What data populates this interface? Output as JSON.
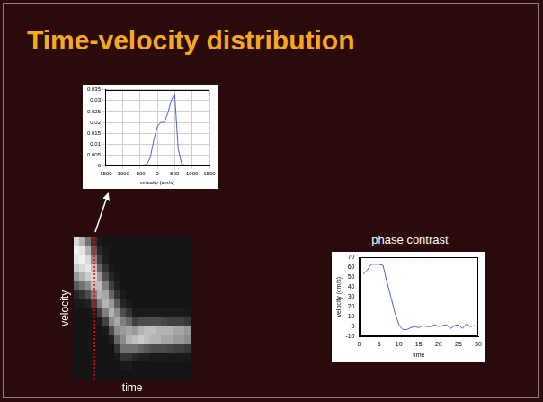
{
  "title": "Time-velocity distribution",
  "chart_data": [
    {
      "type": "line",
      "x_label": "velocity (cm/s)",
      "x": [
        -1500,
        -1400,
        -1300,
        -1200,
        -1100,
        -1000,
        -900,
        -800,
        -700,
        -600,
        -500,
        -400,
        -300,
        -200,
        -100,
        0,
        100,
        200,
        300,
        400,
        500,
        600,
        700,
        800,
        900,
        1000,
        1100,
        1200,
        1300,
        1400,
        1500
      ],
      "values": [
        0.0002,
        0.0003,
        0.0002,
        0.0004,
        0.0002,
        0.0003,
        0.0004,
        0.0002,
        0.0003,
        0.0004,
        0.0003,
        0.0005,
        0.0008,
        0.004,
        0.012,
        0.018,
        0.02,
        0.02,
        0.024,
        0.03,
        0.033,
        0.008,
        0.001,
        0.0004,
        0.0003,
        0.0002,
        0.0003,
        0.0002,
        0.0004,
        0.0002,
        0.0003
      ],
      "color": "#4f5fd6",
      "xlim": [
        -1500,
        1500
      ],
      "xticks": [
        -1500,
        -1000,
        -500,
        0,
        500,
        1000,
        1500
      ],
      "ylim": [
        0,
        0.035
      ],
      "yticks": [
        0,
        0.005,
        0.01,
        0.015,
        0.02,
        0.025,
        0.03,
        0.035
      ],
      "grid": true
    },
    {
      "type": "heatmap",
      "x_label": "time",
      "y_label": "velocity",
      "tick_labels": false,
      "cells": [
        [
          0.85,
          0.95,
          0.9,
          0.8,
          0.6,
          0.35,
          0.15,
          0.1,
          0.08,
          0.08,
          0.08,
          0.08,
          0.08,
          0.08,
          0.08,
          0.08
        ],
        [
          0.7,
          0.9,
          0.95,
          0.85,
          0.7,
          0.45,
          0.2,
          0.1,
          0.08,
          0.08,
          0.08,
          0.08,
          0.08,
          0.08,
          0.08,
          0.08
        ],
        [
          0.45,
          0.7,
          0.85,
          0.9,
          0.8,
          0.55,
          0.3,
          0.12,
          0.08,
          0.08,
          0.08,
          0.08,
          0.08,
          0.08,
          0.08,
          0.08
        ],
        [
          0.2,
          0.35,
          0.55,
          0.75,
          0.85,
          0.75,
          0.5,
          0.25,
          0.1,
          0.08,
          0.08,
          0.08,
          0.08,
          0.08,
          0.08,
          0.08
        ],
        [
          0.1,
          0.15,
          0.25,
          0.4,
          0.6,
          0.75,
          0.7,
          0.5,
          0.25,
          0.1,
          0.08,
          0.08,
          0.08,
          0.08,
          0.08,
          0.08
        ],
        [
          0.08,
          0.1,
          0.12,
          0.2,
          0.3,
          0.5,
          0.65,
          0.7,
          0.5,
          0.25,
          0.1,
          0.08,
          0.08,
          0.08,
          0.08,
          0.08
        ],
        [
          0.08,
          0.08,
          0.08,
          0.1,
          0.15,
          0.25,
          0.4,
          0.6,
          0.7,
          0.55,
          0.3,
          0.12,
          0.08,
          0.08,
          0.08,
          0.08
        ],
        [
          0.08,
          0.08,
          0.08,
          0.08,
          0.1,
          0.12,
          0.2,
          0.35,
          0.55,
          0.65,
          0.55,
          0.4,
          0.2,
          0.1,
          0.08,
          0.08
        ],
        [
          0.08,
          0.08,
          0.08,
          0.08,
          0.08,
          0.08,
          0.1,
          0.15,
          0.3,
          0.5,
          0.6,
          0.55,
          0.45,
          0.2,
          0.1,
          0.08
        ],
        [
          0.08,
          0.08,
          0.08,
          0.08,
          0.08,
          0.08,
          0.08,
          0.1,
          0.2,
          0.4,
          0.65,
          0.7,
          0.45,
          0.2,
          0.1,
          0.08
        ],
        [
          0.08,
          0.08,
          0.08,
          0.08,
          0.08,
          0.08,
          0.08,
          0.08,
          0.1,
          0.25,
          0.6,
          0.75,
          0.45,
          0.15,
          0.08,
          0.08
        ],
        [
          0.08,
          0.08,
          0.08,
          0.08,
          0.08,
          0.08,
          0.08,
          0.08,
          0.1,
          0.3,
          0.7,
          0.8,
          0.4,
          0.12,
          0.08,
          0.08
        ],
        [
          0.08,
          0.08,
          0.08,
          0.08,
          0.08,
          0.08,
          0.08,
          0.08,
          0.1,
          0.3,
          0.75,
          0.75,
          0.35,
          0.12,
          0.08,
          0.08
        ],
        [
          0.08,
          0.08,
          0.08,
          0.08,
          0.08,
          0.08,
          0.08,
          0.08,
          0.1,
          0.3,
          0.75,
          0.7,
          0.3,
          0.1,
          0.08,
          0.08
        ],
        [
          0.08,
          0.08,
          0.08,
          0.08,
          0.08,
          0.08,
          0.08,
          0.08,
          0.1,
          0.3,
          0.7,
          0.7,
          0.3,
          0.1,
          0.08,
          0.08
        ],
        [
          0.08,
          0.08,
          0.08,
          0.08,
          0.08,
          0.08,
          0.08,
          0.08,
          0.1,
          0.28,
          0.7,
          0.65,
          0.3,
          0.1,
          0.08,
          0.08
        ],
        [
          0.08,
          0.08,
          0.08,
          0.08,
          0.08,
          0.08,
          0.08,
          0.08,
          0.1,
          0.25,
          0.7,
          0.65,
          0.28,
          0.1,
          0.08,
          0.08
        ],
        [
          0.08,
          0.08,
          0.08,
          0.08,
          0.08,
          0.08,
          0.08,
          0.08,
          0.1,
          0.25,
          0.65,
          0.6,
          0.25,
          0.1,
          0.08,
          0.08
        ],
        [
          0.08,
          0.08,
          0.08,
          0.08,
          0.08,
          0.08,
          0.08,
          0.08,
          0.1,
          0.25,
          0.65,
          0.6,
          0.25,
          0.1,
          0.08,
          0.08
        ],
        [
          0.08,
          0.08,
          0.08,
          0.08,
          0.08,
          0.08,
          0.08,
          0.08,
          0.1,
          0.22,
          0.6,
          0.55,
          0.22,
          0.1,
          0.08,
          0.08
        ]
      ],
      "cursor": {
        "time": 3.5,
        "color": "#ff0000",
        "line_style": "dotted"
      }
    },
    {
      "type": "line",
      "title": "phase contrast",
      "x_label": "time",
      "y_label": "velocity (cm/s)",
      "x": [
        1,
        2,
        3,
        4,
        5,
        6,
        7,
        8,
        9,
        10,
        11,
        12,
        13,
        14,
        15,
        16,
        17,
        18,
        19,
        20,
        21,
        22,
        23,
        24,
        25,
        26,
        27,
        28,
        29,
        30
      ],
      "values": [
        53,
        57,
        63,
        63,
        63,
        62,
        45,
        30,
        14,
        2,
        -3,
        -3,
        -1,
        0,
        -1,
        1,
        0,
        0,
        2,
        0,
        1,
        2,
        -2,
        1,
        2,
        -2,
        3,
        0,
        1,
        0
      ],
      "color": "#4f5fd6",
      "xlim": [
        0,
        30
      ],
      "xticks": [
        0,
        5,
        10,
        15,
        20,
        25,
        30
      ],
      "ylim": [
        -10,
        70
      ],
      "yticks": [
        -10,
        0,
        10,
        20,
        30,
        40,
        50,
        60,
        70
      ],
      "grid": false
    }
  ]
}
